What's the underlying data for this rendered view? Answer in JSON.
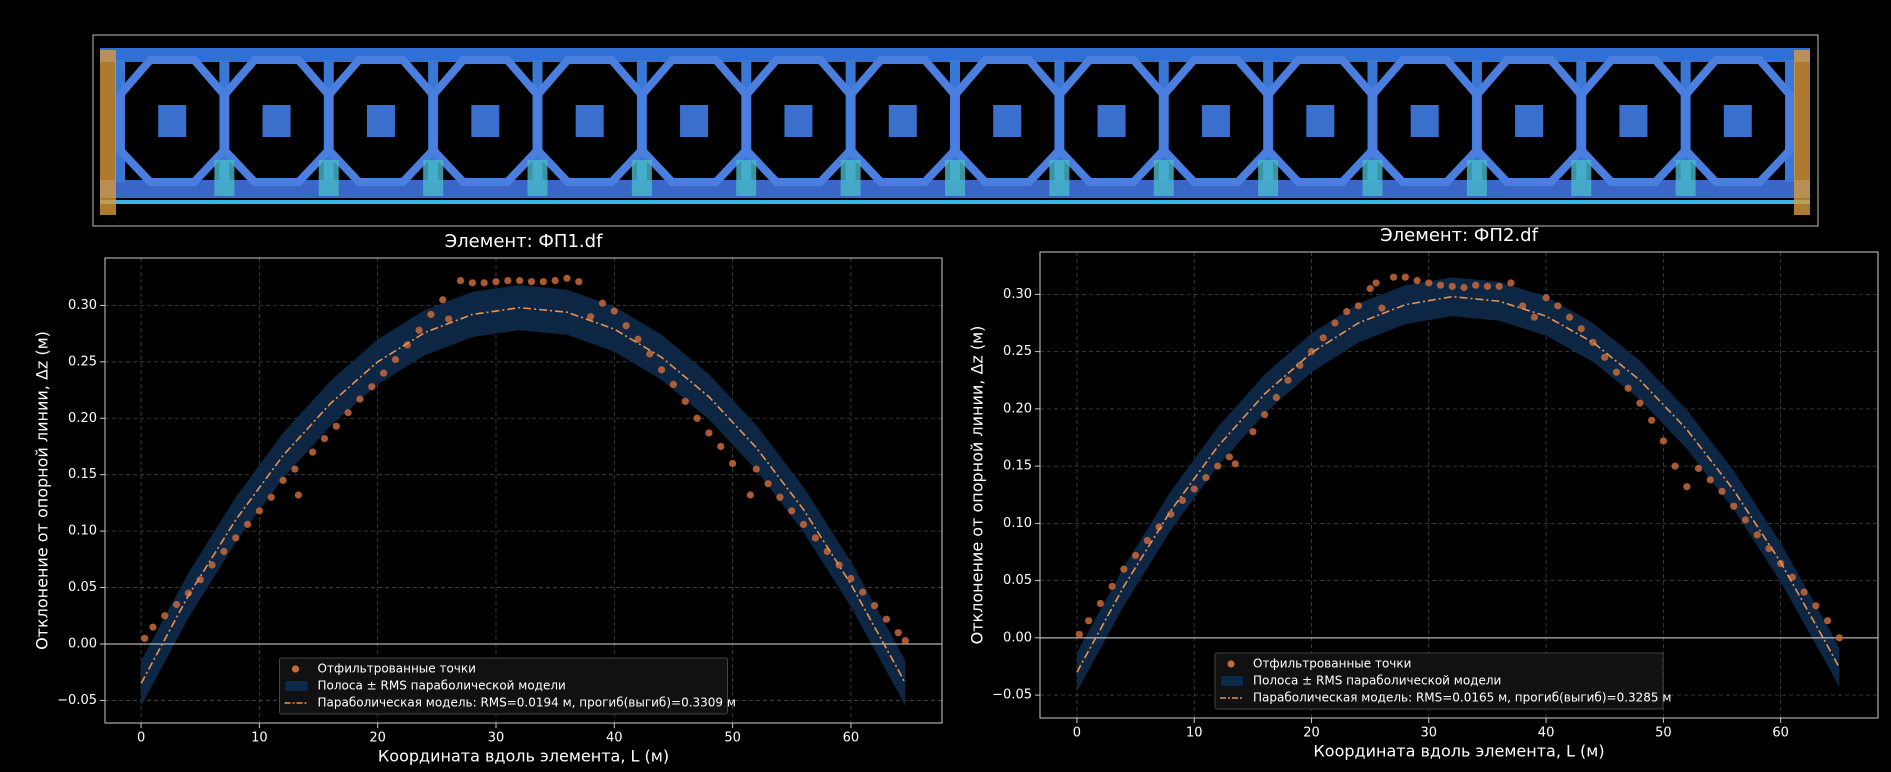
{
  "chart_data": [
    {
      "type": "scatter",
      "title": "Элемент: ФП1.df",
      "xlabel": "Координата вдоль элемента, L (м)",
      "ylabel": "Отклонение от опорной линии, Δz (м)",
      "xlim": [
        -3.05,
        67.7
      ],
      "ylim": [
        -0.07,
        0.342
      ],
      "xticks": [
        0,
        10,
        20,
        30,
        40,
        50,
        60
      ],
      "yticks": [
        {
          "value": -0.05,
          "label": "−0.05"
        },
        {
          "value": 0,
          "label": "0.00"
        },
        {
          "value": 0.05,
          "label": "0.05"
        },
        {
          "value": 0.1,
          "label": "0.10"
        },
        {
          "value": 0.15,
          "label": "0.15"
        },
        {
          "value": 0.2,
          "label": "0.20"
        },
        {
          "value": 0.25,
          "label": "0.25"
        },
        {
          "value": 0.3,
          "label": "0.30"
        }
      ],
      "grid": true,
      "hline": 0,
      "legend": "lower center",
      "points": {
        "name": "Отфильтрованные точки",
        "color": "#c8693a",
        "x": [
          0.3,
          1,
          2,
          3,
          4,
          5,
          6,
          7,
          8,
          9,
          10,
          11,
          12,
          13,
          13.3,
          14.5,
          15.5,
          16.5,
          17.5,
          18.5,
          19.5,
          20.5,
          21.5,
          22.5,
          23.5,
          24.5,
          25.5,
          26,
          27,
          28,
          29,
          30,
          31,
          32,
          33,
          34,
          35,
          36,
          37,
          38,
          39,
          40,
          41,
          42,
          43,
          44,
          45,
          46,
          47,
          48,
          49,
          50,
          51.5,
          52,
          53,
          54,
          55,
          56,
          57,
          58,
          59,
          60,
          61,
          62,
          63,
          64,
          64.6
        ],
        "values": [
          0.005,
          0.015,
          0.025,
          0.035,
          0.045,
          0.057,
          0.07,
          0.082,
          0.094,
          0.106,
          0.118,
          0.13,
          0.145,
          0.155,
          0.132,
          0.17,
          0.182,
          0.193,
          0.205,
          0.217,
          0.228,
          0.24,
          0.252,
          0.265,
          0.278,
          0.292,
          0.305,
          0.288,
          0.322,
          0.32,
          0.32,
          0.321,
          0.322,
          0.322,
          0.321,
          0.321,
          0.322,
          0.324,
          0.321,
          0.29,
          0.302,
          0.295,
          0.282,
          0.27,
          0.257,
          0.243,
          0.23,
          0.215,
          0.2,
          0.187,
          0.175,
          0.16,
          0.132,
          0.155,
          0.142,
          0.13,
          0.118,
          0.106,
          0.094,
          0.082,
          0.07,
          0.058,
          0.046,
          0.034,
          0.022,
          0.01,
          0.003
        ]
      },
      "band": {
        "name": "Полоса ± RMS параболической модели",
        "color": "#0e2a4a",
        "x": [
          0,
          4,
          8,
          12,
          16,
          20,
          24,
          28,
          32,
          36,
          40,
          44,
          48,
          52,
          56,
          60,
          64,
          64.6
        ],
        "upper": [
          -0.015,
          0.063,
          0.13,
          0.187,
          0.233,
          0.27,
          0.296,
          0.312,
          0.318,
          0.314,
          0.299,
          0.274,
          0.239,
          0.194,
          0.139,
          0.073,
          -0.003,
          -0.015
        ],
        "lower": [
          -0.055,
          0.023,
          0.09,
          0.147,
          0.193,
          0.23,
          0.256,
          0.272,
          0.278,
          0.274,
          0.259,
          0.234,
          0.199,
          0.154,
          0.099,
          0.033,
          -0.043,
          -0.055
        ]
      },
      "model": {
        "name": "Параболическая модель: RMS=0.0194 м, прогиб(выгиб)=0.3309 м",
        "color": "#e8914f",
        "x": [
          0,
          4,
          8,
          12,
          16,
          20,
          24,
          28,
          32,
          36,
          40,
          44,
          48,
          52,
          56,
          60,
          64,
          64.6
        ],
        "values": [
          -0.035,
          0.043,
          0.11,
          0.167,
          0.213,
          0.25,
          0.276,
          0.292,
          0.298,
          0.294,
          0.279,
          0.254,
          0.219,
          0.174,
          0.119,
          0.053,
          -0.023,
          -0.035
        ]
      }
    },
    {
      "type": "scatter",
      "title": "Элемент: ФП2.df",
      "xlabel": "Координата вдоль элемента, L (м)",
      "ylabel": "Отклонение от опорной линии, Δz (м)",
      "xlim": [
        -3.15,
        68.3
      ],
      "ylim": [
        -0.07,
        0.337
      ],
      "xticks": [
        0,
        10,
        20,
        30,
        40,
        50,
        60
      ],
      "yticks": [
        {
          "value": -0.05,
          "label": "−0.05"
        },
        {
          "value": 0,
          "label": "0.00"
        },
        {
          "value": 0.05,
          "label": "0.05"
        },
        {
          "value": 0.1,
          "label": "0.10"
        },
        {
          "value": 0.15,
          "label": "0.15"
        },
        {
          "value": 0.2,
          "label": "0.20"
        },
        {
          "value": 0.25,
          "label": "0.25"
        },
        {
          "value": 0.3,
          "label": "0.30"
        }
      ],
      "grid": true,
      "hline": 0,
      "legend": "lower center",
      "points": {
        "name": "Отфильтрованные точки",
        "color": "#c8693a",
        "x": [
          0.2,
          1,
          2,
          3,
          4,
          5,
          6,
          7,
          8,
          9,
          10,
          11,
          12,
          13,
          13.5,
          15,
          16,
          17,
          18,
          19,
          20,
          21,
          22,
          23,
          24,
          25,
          25.5,
          26,
          27,
          28,
          29,
          30,
          31,
          32,
          33,
          34,
          35,
          36,
          37,
          38,
          39,
          40,
          41,
          42,
          43,
          44,
          45,
          46,
          47,
          48,
          49,
          50,
          51,
          52,
          53,
          54,
          55,
          56,
          57,
          58,
          59,
          60,
          61,
          62,
          63,
          64,
          65
        ],
        "values": [
          0.003,
          0.015,
          0.03,
          0.045,
          0.06,
          0.072,
          0.085,
          0.097,
          0.108,
          0.12,
          0.13,
          0.14,
          0.15,
          0.158,
          0.152,
          0.18,
          0.195,
          0.21,
          0.225,
          0.238,
          0.25,
          0.262,
          0.275,
          0.285,
          0.29,
          0.305,
          0.31,
          0.288,
          0.315,
          0.315,
          0.312,
          0.31,
          0.308,
          0.307,
          0.306,
          0.308,
          0.307,
          0.307,
          0.31,
          0.29,
          0.28,
          0.297,
          0.29,
          0.28,
          0.27,
          0.258,
          0.245,
          0.232,
          0.218,
          0.205,
          0.19,
          0.172,
          0.15,
          0.132,
          0.148,
          0.138,
          0.128,
          0.115,
          0.103,
          0.09,
          0.078,
          0.065,
          0.053,
          0.04,
          0.028,
          0.015,
          0.0
        ]
      },
      "band": {
        "name": "Полоса ± RMS параболической модели",
        "color": "#0e2a4a",
        "x": [
          0,
          4,
          8,
          12,
          16,
          20,
          24,
          28,
          32,
          36,
          40,
          44,
          48,
          52,
          56,
          60,
          64,
          65
        ],
        "upper": [
          -0.013,
          0.062,
          0.128,
          0.184,
          0.23,
          0.266,
          0.292,
          0.308,
          0.315,
          0.311,
          0.298,
          0.275,
          0.242,
          0.199,
          0.146,
          0.083,
          0.01,
          -0.009
        ],
        "lower": [
          -0.047,
          0.028,
          0.094,
          0.15,
          0.196,
          0.232,
          0.258,
          0.274,
          0.281,
          0.277,
          0.264,
          0.241,
          0.208,
          0.165,
          0.112,
          0.049,
          -0.024,
          -0.043
        ]
      },
      "model": {
        "name": "Параболическая модель: RMS=0.0165 м, прогиб(выгиб)=0.3285 м",
        "color": "#e8914f",
        "x": [
          0,
          4,
          8,
          12,
          16,
          20,
          24,
          28,
          32,
          36,
          40,
          44,
          48,
          52,
          56,
          60,
          64,
          65
        ],
        "values": [
          -0.03,
          0.045,
          0.111,
          0.167,
          0.213,
          0.249,
          0.275,
          0.291,
          0.298,
          0.294,
          0.281,
          0.258,
          0.225,
          0.182,
          0.129,
          0.066,
          -0.007,
          -0.026
        ]
      }
    }
  ]
}
